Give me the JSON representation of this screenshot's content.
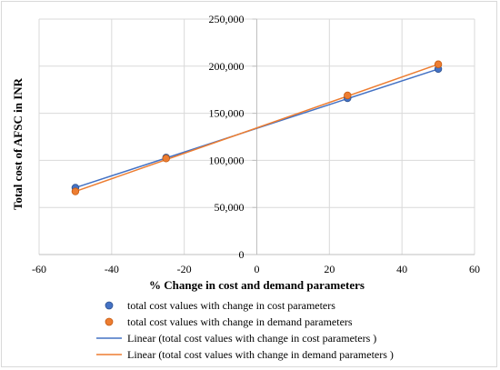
{
  "chart_data": {
    "type": "scatter",
    "title": "",
    "xlabel": "% Change in cost and demand parameters",
    "ylabel": "Total cost of AFSC in INR",
    "xlim": [
      -60,
      60
    ],
    "ylim": [
      0,
      250000
    ],
    "x_ticks": [
      -60,
      -40,
      -20,
      0,
      20,
      40,
      60
    ],
    "y_ticks": [
      0,
      50000,
      100000,
      150000,
      200000,
      250000
    ],
    "x_tick_labels": [
      "-60",
      "-40",
      "-20",
      "0",
      "20",
      "40",
      "60"
    ],
    "y_tick_labels": [
      "0",
      "50,000",
      "100,000",
      "150,000",
      "200,000",
      "250,000"
    ],
    "grid": "on",
    "legend_position": "bottom",
    "series": [
      {
        "name": "total cost values with change in cost parameters",
        "kind": "points",
        "color": "#4472c4",
        "x": [
          -50,
          -25,
          25,
          50
        ],
        "y": [
          71000,
          103000,
          166000,
          197000
        ]
      },
      {
        "name": "total cost values with change in demand parameters",
        "kind": "points",
        "color": "#ed7d31",
        "x": [
          -50,
          -25,
          25,
          50
        ],
        "y": [
          67000,
          102000,
          169000,
          202000
        ]
      },
      {
        "name": "Linear (total cost values with change in cost parameters )",
        "kind": "trendline",
        "color": "#4472c4",
        "x": [
          -50,
          50
        ],
        "y": [
          71000,
          197000
        ]
      },
      {
        "name": "Linear (total cost values with change in demand parameters )",
        "kind": "trendline",
        "color": "#ed7d31",
        "x": [
          -50,
          50
        ],
        "y": [
          67000,
          202000
        ]
      }
    ]
  }
}
